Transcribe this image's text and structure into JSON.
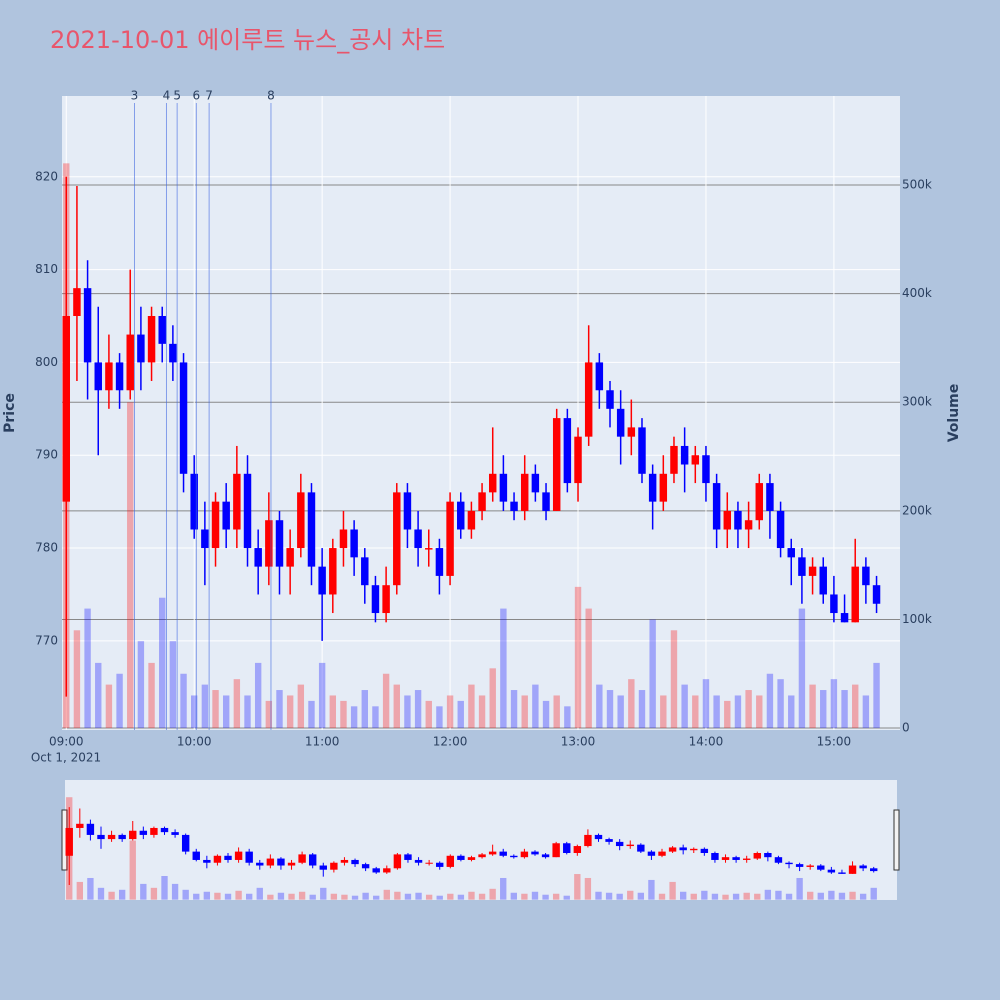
{
  "chart_data": {
    "type": "candlestick",
    "title": "2021-10-01 에이루트 뉴스_공시 차트",
    "y_label": "Price",
    "y2_label": "Volume",
    "x_sublabel": "Oct 1, 2021",
    "increasing_color": "#ff0000",
    "decreasing_color": "#0000ff",
    "x": [
      "09:00",
      "09:05",
      "09:10",
      "09:15",
      "09:20",
      "09:25",
      "09:30",
      "09:35",
      "09:40",
      "09:45",
      "09:50",
      "09:55",
      "10:00",
      "10:05",
      "10:10",
      "10:15",
      "10:20",
      "10:25",
      "10:30",
      "10:35",
      "10:40",
      "10:45",
      "10:50",
      "10:55",
      "11:00",
      "11:05",
      "11:10",
      "11:15",
      "11:20",
      "11:25",
      "11:30",
      "11:35",
      "11:40",
      "11:45",
      "11:50",
      "11:55",
      "12:00",
      "12:05",
      "12:10",
      "12:15",
      "12:20",
      "12:25",
      "12:30",
      "12:35",
      "12:40",
      "12:45",
      "12:50",
      "12:55",
      "13:00",
      "13:05",
      "13:10",
      "13:15",
      "13:20",
      "13:25",
      "13:30",
      "13:35",
      "13:40",
      "13:45",
      "13:50",
      "13:55",
      "14:00",
      "14:05",
      "14:10",
      "14:15",
      "14:20",
      "14:25",
      "14:30",
      "14:35",
      "14:40",
      "14:45",
      "14:50",
      "14:55",
      "15:00",
      "15:05",
      "15:10",
      "15:15",
      "15:20"
    ],
    "open": [
      785,
      805,
      808,
      800,
      797,
      800,
      797,
      803,
      800,
      805,
      802,
      800,
      788,
      782,
      780,
      785,
      782,
      788,
      780,
      778,
      783,
      778,
      780,
      786,
      778,
      775,
      780,
      782,
      779,
      776,
      773,
      776,
      786,
      782,
      780,
      780,
      777,
      785,
      782,
      784,
      786,
      788,
      785,
      784,
      788,
      786,
      784,
      794,
      787,
      792,
      800,
      797,
      795,
      792,
      793,
      788,
      785,
      788,
      791,
      789,
      790,
      787,
      782,
      784,
      782,
      783,
      787,
      784,
      780,
      779,
      777,
      778,
      775,
      773,
      772,
      778,
      776
    ],
    "high": [
      820,
      819,
      811,
      806,
      803,
      801,
      810,
      806,
      806,
      806,
      804,
      801,
      790,
      785,
      786,
      787,
      791,
      790,
      782,
      786,
      784,
      782,
      788,
      787,
      780,
      781,
      784,
      783,
      780,
      777,
      778,
      787,
      787,
      784,
      782,
      781,
      786,
      786,
      785,
      787,
      793,
      790,
      786,
      790,
      789,
      787,
      795,
      795,
      793,
      804,
      801,
      798,
      797,
      796,
      794,
      789,
      790,
      792,
      793,
      791,
      791,
      788,
      786,
      785,
      785,
      788,
      788,
      785,
      781,
      780,
      779,
      779,
      777,
      775,
      781,
      779,
      777
    ],
    "low": [
      764,
      798,
      796,
      790,
      795,
      795,
      796,
      797,
      798,
      800,
      798,
      786,
      781,
      776,
      778,
      780,
      780,
      778,
      775,
      776,
      775,
      775,
      779,
      776,
      770,
      773,
      778,
      777,
      774,
      772,
      772,
      775,
      780,
      778,
      778,
      775,
      776,
      781,
      781,
      783,
      785,
      784,
      783,
      783,
      785,
      783,
      784,
      786,
      785,
      791,
      795,
      793,
      789,
      790,
      787,
      782,
      784,
      787,
      786,
      787,
      785,
      780,
      780,
      780,
      780,
      782,
      781,
      779,
      776,
      774,
      775,
      774,
      772,
      772,
      772,
      774,
      773
    ],
    "close": [
      805,
      808,
      800,
      797,
      800,
      797,
      803,
      800,
      805,
      802,
      800,
      788,
      782,
      780,
      785,
      782,
      788,
      780,
      778,
      783,
      778,
      780,
      786,
      778,
      775,
      780,
      782,
      779,
      776,
      773,
      776,
      786,
      782,
      780,
      780,
      777,
      785,
      782,
      784,
      786,
      788,
      785,
      784,
      788,
      786,
      784,
      794,
      787,
      792,
      800,
      797,
      795,
      792,
      793,
      788,
      785,
      788,
      791,
      789,
      790,
      787,
      782,
      784,
      782,
      783,
      787,
      784,
      780,
      779,
      777,
      778,
      775,
      773,
      772,
      778,
      776,
      774
    ],
    "volume": [
      520000,
      90000,
      110000,
      60000,
      40000,
      50000,
      300000,
      80000,
      60000,
      120000,
      80000,
      50000,
      30000,
      40000,
      35000,
      30000,
      45000,
      30000,
      60000,
      25000,
      35000,
      30000,
      40000,
      25000,
      60000,
      30000,
      25000,
      20000,
      35000,
      20000,
      50000,
      40000,
      30000,
      35000,
      25000,
      20000,
      30000,
      25000,
      40000,
      30000,
      55000,
      110000,
      35000,
      30000,
      40000,
      25000,
      30000,
      20000,
      130000,
      110000,
      40000,
      35000,
      30000,
      45000,
      35000,
      100000,
      30000,
      90000,
      40000,
      30000,
      45000,
      30000,
      25000,
      30000,
      35000,
      30000,
      50000,
      45000,
      30000,
      110000,
      40000,
      35000,
      45000,
      35000,
      40000,
      30000,
      60000
    ],
    "news": [
      {
        "x": "09:32",
        "label": "3"
      },
      {
        "x": "09:47",
        "label": "4"
      },
      {
        "x": "09:52",
        "label": "5"
      },
      {
        "x": "10:01",
        "label": "6"
      },
      {
        "x": "10:07",
        "label": "7"
      },
      {
        "x": "10:36",
        "label": "8"
      }
    ],
    "xlim": [
      "08:58",
      "15:31"
    ],
    "xticks": [
      "09:00",
      "10:00",
      "11:00",
      "12:00",
      "13:00",
      "14:00",
      "15:00"
    ],
    "ylim": [
      760.4,
      828.7
    ],
    "yticks": [
      770,
      780,
      790,
      800,
      810,
      820
    ],
    "y2lim": [
      -1800,
      582000
    ],
    "y2ticks": [
      0,
      {
        "value": 100000,
        "label": "100k"
      },
      {
        "value": 200000,
        "label": "200k"
      },
      {
        "value": 300000,
        "label": "300k"
      },
      {
        "value": 400000,
        "label": "400k"
      },
      {
        "value": 500000,
        "label": "500k"
      }
    ],
    "grid": true,
    "rangeslider": true
  }
}
